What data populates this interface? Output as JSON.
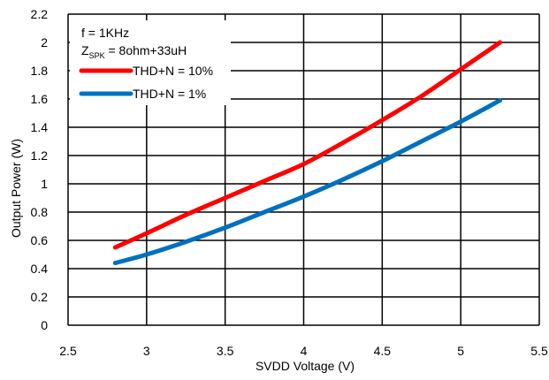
{
  "chart_data": {
    "type": "line",
    "title": "",
    "xlabel": "SVDD Voltage (V)",
    "ylabel": "Output Power (W)",
    "xlim": [
      2.5,
      5.5
    ],
    "ylim": [
      0,
      2.2
    ],
    "xticks": [
      2.5,
      3,
      3.5,
      4,
      4.5,
      5,
      5.5
    ],
    "xtick_labels": [
      "2.5",
      "3",
      "3.5",
      "4",
      "4.5",
      "5",
      "5.5"
    ],
    "yticks": [
      0,
      0.2,
      0.4,
      0.6,
      0.8,
      1,
      1.2,
      1.4,
      1.6,
      1.8,
      2,
      2.2
    ],
    "ytick_labels": [
      "0",
      "0.2",
      "0.4",
      "0.6",
      "0.8",
      "1",
      "1.2",
      "1.4",
      "1.6",
      "1.8",
      "2",
      "2.2"
    ],
    "grid": true,
    "legend_position": "top-left",
    "annotations": {
      "freq": "f = 1KHz",
      "z_main": "Z",
      "z_sub": "SPK",
      "z_rest": " = 8ohm+33uH"
    },
    "series": [
      {
        "name": "THD+N = 10%",
        "color": "#ff0000",
        "x": [
          2.8,
          3.0,
          3.25,
          3.5,
          3.75,
          4.0,
          4.25,
          4.5,
          4.75,
          5.0,
          5.25
        ],
        "y": [
          0.55,
          0.65,
          0.78,
          0.9,
          1.02,
          1.14,
          1.29,
          1.45,
          1.62,
          1.81,
          2.0
        ]
      },
      {
        "name": "THD+N = 1%",
        "color": "#0070c0",
        "x": [
          2.8,
          3.0,
          3.25,
          3.5,
          3.75,
          4.0,
          4.25,
          4.5,
          4.75,
          5.0,
          5.25
        ],
        "y": [
          0.44,
          0.5,
          0.59,
          0.69,
          0.8,
          0.91,
          1.03,
          1.16,
          1.3,
          1.44,
          1.59
        ]
      }
    ]
  }
}
